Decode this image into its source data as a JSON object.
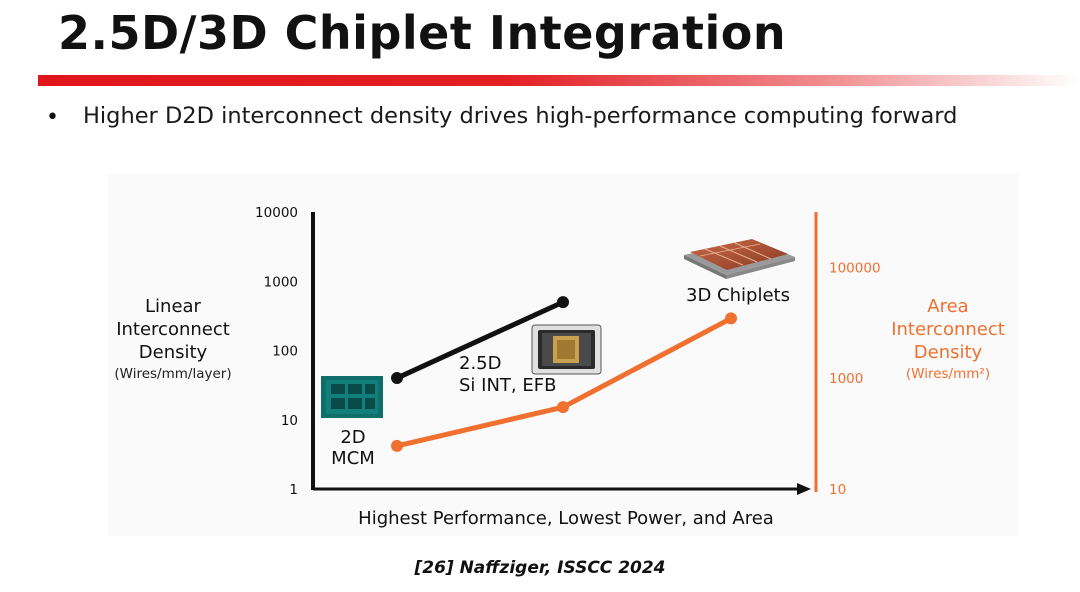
{
  "slide": {
    "title": "2.5D/3D Chiplet Integration",
    "bullet": "Higher D2D interconnect density drives high-performance computing forward",
    "citation": "[26] Naffziger, ISSCC 2024"
  },
  "colors": {
    "accent_red": "#e31f25",
    "linear_series": "#111111",
    "area_series": "#f07030"
  },
  "chart_data": {
    "type": "line",
    "x_categories": [
      "2D MCM",
      "2.5D Si INT, EFB",
      "3D Chiplets"
    ],
    "xlabel": "Highest Performance, Lowest Power, and Area",
    "y_left": {
      "label_lines": [
        "Linear",
        "Interconnect",
        "Density"
      ],
      "unit": "(Wires/mm/layer)",
      "scale": "log",
      "ticks": [
        "1",
        "10",
        "100",
        "1000",
        "10000"
      ],
      "range": [
        1,
        10000
      ]
    },
    "y_right": {
      "label_lines": [
        "Area",
        "Interconnect",
        "Density"
      ],
      "unit": "(Wires/mm²)",
      "scale": "log",
      "ticks": [
        "10",
        "1000",
        "100000"
      ],
      "range": [
        10,
        1000000
      ]
    },
    "series": [
      {
        "key": "linear",
        "axis": "left",
        "color": "#111111",
        "x_index": [
          0,
          1
        ],
        "values": [
          40,
          500
        ]
      },
      {
        "key": "area",
        "axis": "right",
        "color": "#f07030",
        "x_index": [
          0,
          1,
          2
        ],
        "values": [
          60,
          300,
          12000
        ]
      }
    ],
    "annotations": [
      {
        "lines": [
          "2D",
          "MCM"
        ]
      },
      {
        "lines": [
          "2.5D",
          "Si INT, EFB"
        ]
      },
      {
        "lines": [
          "3D Chiplets"
        ]
      }
    ],
    "icons": [
      "2d-mcm-chip-icon",
      "2-5d-package-icon",
      "3d-chiplet-stack-icon"
    ]
  }
}
